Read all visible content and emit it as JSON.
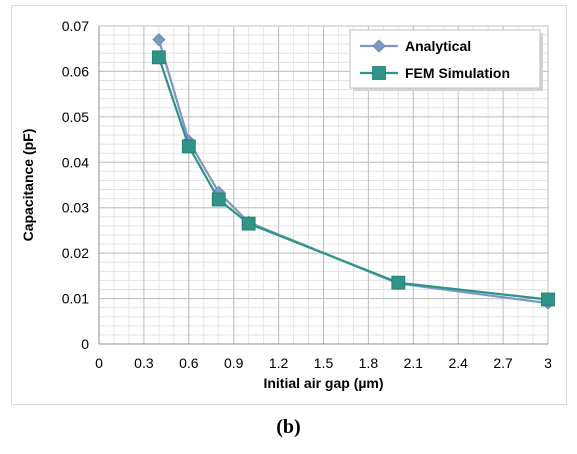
{
  "caption": "(b)",
  "chart_data": {
    "type": "line",
    "title": "",
    "xlabel": "Initial air gap (µm)",
    "ylabel": "Capacitance (pF)",
    "xlim": [
      0,
      3
    ],
    "ylim": [
      0,
      0.07
    ],
    "xticks": [
      0,
      0.3,
      0.6,
      0.9,
      1.2,
      1.5,
      1.8,
      2.1,
      2.4,
      2.7,
      3
    ],
    "xtick_labels": [
      "0",
      "0.3",
      "0.6",
      "0.9",
      "1.2",
      "1.5",
      "1.8",
      "2.1",
      "2.4",
      "2.7",
      "3"
    ],
    "yticks": [
      0,
      0.01,
      0.02,
      0.03,
      0.04,
      0.05,
      0.06,
      0.07
    ],
    "ytick_labels": [
      "0",
      "0.01",
      "0.02",
      "0.03",
      "0.04",
      "0.05",
      "0.06",
      "0.07"
    ],
    "x_minor_step": 0.1,
    "y_minor_step": 0.002,
    "grid": true,
    "legend_position": "top-right",
    "series": [
      {
        "name": "Analytical",
        "marker": "diamond",
        "color": "#7f97c4",
        "x": [
          0.4,
          0.6,
          0.8,
          1.0,
          2.0,
          3.0
        ],
        "y": [
          0.067,
          0.0447,
          0.0334,
          0.0268,
          0.0133,
          0.009
        ]
      },
      {
        "name": "FEM Simulation",
        "marker": "square",
        "color": "#2e9488",
        "x": [
          0.4,
          0.6,
          0.8,
          1.0,
          2.0,
          3.0
        ],
        "y": [
          0.0631,
          0.0435,
          0.0318,
          0.0265,
          0.0135,
          0.0098
        ]
      }
    ]
  }
}
